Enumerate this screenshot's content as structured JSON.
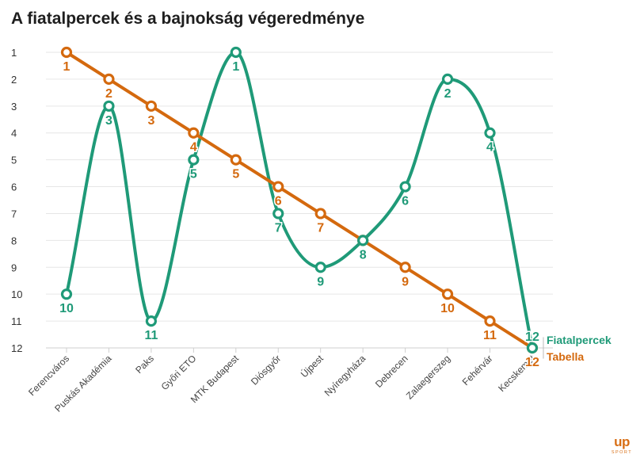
{
  "title": "A fiatalpercek és a bajnokság végeredménye",
  "logo": {
    "mark": "up",
    "sub": "SPORT"
  },
  "colors": {
    "fiatalpercek": "#1f9a78",
    "tabella": "#d4690e",
    "grid": "#e6e6e6",
    "axis": "#cfcfcf"
  },
  "chart_data": {
    "type": "line",
    "title": "A fiatalpercek és a bajnokság végeredménye",
    "xlabel": "",
    "ylabel": "",
    "ylim": [
      1,
      12
    ],
    "y_inverted": true,
    "yticks": [
      1,
      2,
      3,
      4,
      5,
      6,
      7,
      8,
      9,
      10,
      11,
      12
    ],
    "grid": true,
    "legend": "end-of-line labels at right",
    "categories": [
      "Ferencváros",
      "Puskás Akadémia",
      "Paks",
      "Győri ETO",
      "MTK Budapest",
      "Diósgyőr",
      "Újpest",
      "Nyíregyháza",
      "Debrecen",
      "Zalaegerszeg",
      "Fehérvár",
      "Kecskemét"
    ],
    "series": [
      {
        "name": "Fiatalpercek",
        "values": [
          10,
          3,
          11,
          5,
          1,
          7,
          9,
          8,
          6,
          2,
          4,
          12
        ]
      },
      {
        "name": "Tabella",
        "values": [
          1,
          2,
          3,
          4,
          5,
          6,
          7,
          8,
          9,
          10,
          11,
          12
        ]
      }
    ]
  }
}
